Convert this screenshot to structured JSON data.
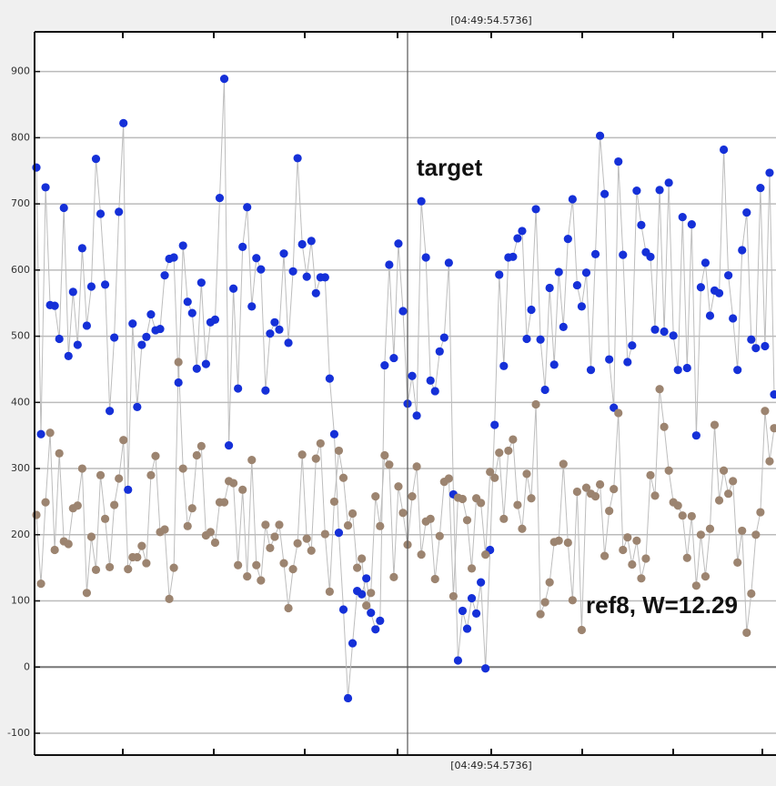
{
  "chart_data": {
    "type": "line",
    "cursor_label": "[04:49:54.5736]",
    "ylim": [
      -133,
      960
    ],
    "yticks": [
      -100,
      0,
      100,
      200,
      300,
      400,
      500,
      600,
      700,
      800,
      900
    ],
    "grid": true,
    "connector_color": "#bdbdbd",
    "series": [
      {
        "name": "target",
        "color": "#1530d8",
        "values": [
          755,
          352,
          725,
          547,
          546,
          496,
          694,
          470,
          567,
          487,
          633,
          516,
          575,
          768,
          685,
          578,
          387,
          498,
          688,
          822,
          268,
          519,
          393,
          487,
          499,
          533,
          509,
          511,
          592,
          617,
          619,
          430,
          637,
          552,
          535,
          451,
          581,
          458,
          521,
          525,
          709,
          889,
          335,
          572,
          421,
          635,
          695,
          545,
          618,
          601,
          418,
          504,
          521,
          510,
          625,
          490,
          598,
          769,
          639,
          590,
          644,
          565,
          589,
          589,
          436,
          352,
          203,
          87,
          -47,
          36,
          115,
          110,
          134,
          82,
          57,
          70,
          456,
          608,
          467,
          640,
          538,
          398,
          440,
          380,
          704,
          619,
          433,
          417,
          477,
          498,
          611,
          261,
          10,
          85,
          58,
          104,
          81,
          128,
          -2,
          177,
          366,
          593,
          455,
          619,
          620,
          648,
          659,
          496,
          540,
          692,
          495,
          419,
          573,
          457,
          597,
          514,
          647,
          707,
          577,
          545,
          596,
          449,
          624,
          803,
          715,
          465,
          392,
          764,
          623,
          461,
          486,
          720,
          668,
          627,
          620,
          510,
          721,
          507,
          732,
          501,
          449,
          680,
          452,
          669,
          350,
          574,
          611,
          531,
          569,
          565,
          782,
          592,
          527,
          449,
          630,
          687,
          495,
          482,
          724,
          485,
          747,
          412
        ]
      },
      {
        "name": "ref8, W=12.29",
        "color": "#9c8470",
        "values": [
          230,
          126,
          249,
          354,
          177,
          323,
          190,
          186,
          240,
          244,
          300,
          112,
          197,
          147,
          290,
          224,
          151,
          245,
          285,
          343,
          148,
          166,
          166,
          183,
          157,
          290,
          319,
          204,
          208,
          103,
          150,
          461,
          300,
          213,
          240,
          320,
          334,
          199,
          204,
          188,
          249,
          249,
          281,
          278,
          154,
          268,
          137,
          313,
          154,
          131,
          215,
          180,
          197,
          215,
          157,
          89,
          148,
          187,
          321,
          194,
          176,
          315,
          338,
          201,
          114,
          250,
          327,
          286,
          214,
          232,
          150,
          164,
          93,
          112,
          258,
          213,
          320,
          306,
          136,
          273,
          233,
          185,
          258,
          303,
          170,
          220,
          224,
          133,
          198,
          280,
          285,
          107,
          256,
          254,
          222,
          149,
          255,
          248,
          170,
          295,
          286,
          324,
          224,
          327,
          344,
          245,
          209,
          292,
          255,
          397,
          80,
          98,
          128,
          189,
          191,
          307,
          188,
          101,
          265,
          56,
          271,
          262,
          258,
          276,
          168,
          236,
          269,
          384,
          177,
          196,
          155,
          191,
          134,
          164,
          290,
          259,
          420,
          363,
          297,
          249,
          244,
          229,
          165,
          228,
          123,
          200,
          137,
          209,
          366,
          252,
          297,
          262,
          281,
          158,
          206,
          52,
          111,
          200,
          234,
          387,
          311,
          361
        ]
      }
    ]
  }
}
